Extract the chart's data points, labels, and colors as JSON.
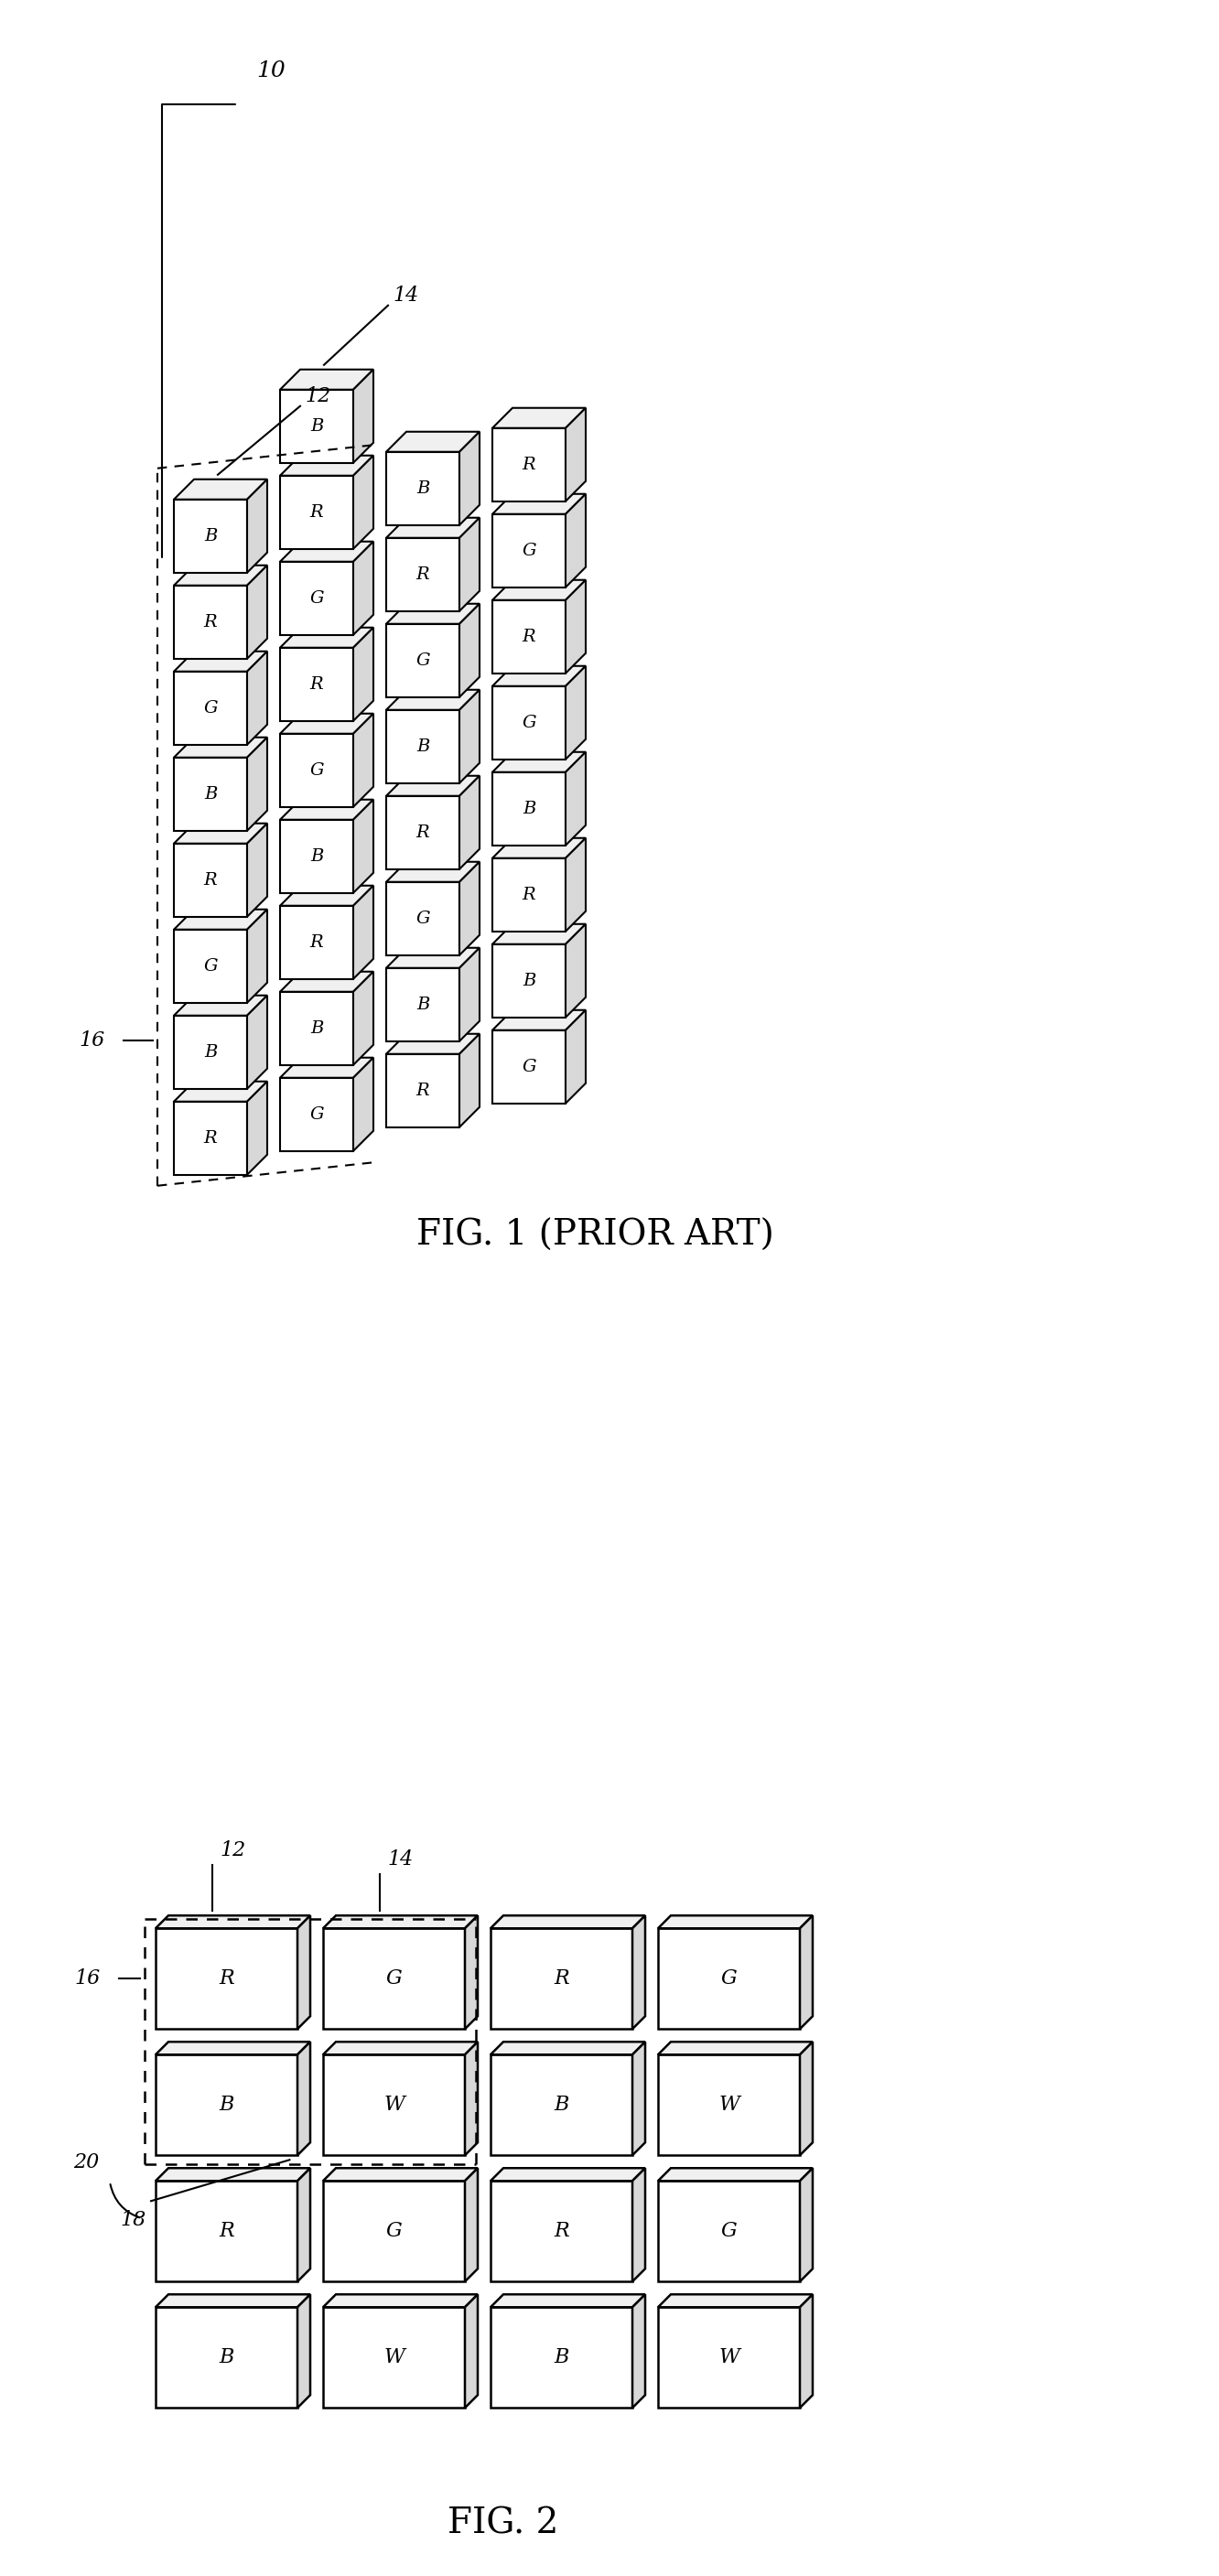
{
  "fig1_title": "FIG. 1 (PRIOR ART)",
  "fig2_title": "FIG. 2",
  "bg_color": "#ffffff",
  "fig1_col0": [
    "R",
    "B",
    "G",
    "R",
    "B",
    "G",
    "R",
    "B"
  ],
  "fig1_col1": [
    "G",
    "B",
    "R",
    "B",
    "G",
    "R",
    "G",
    "R",
    "B"
  ],
  "fig1_col2": [
    "R",
    "B",
    "G",
    "R",
    "B",
    "G",
    "R",
    "B"
  ],
  "fig1_col3": [
    "G",
    "B",
    "R",
    "B",
    "G",
    "R",
    "G",
    "R"
  ],
  "fig2_grid": [
    [
      "R",
      "G",
      "R",
      "G"
    ],
    [
      "B",
      "W",
      "B",
      "W"
    ],
    [
      "R",
      "G",
      "R",
      "G"
    ],
    [
      "B",
      "W",
      "B",
      "W"
    ]
  ],
  "label_10": "10",
  "label_12": "12",
  "label_14": "14",
  "label_16": "16",
  "label_18": "18",
  "label_20": "20"
}
